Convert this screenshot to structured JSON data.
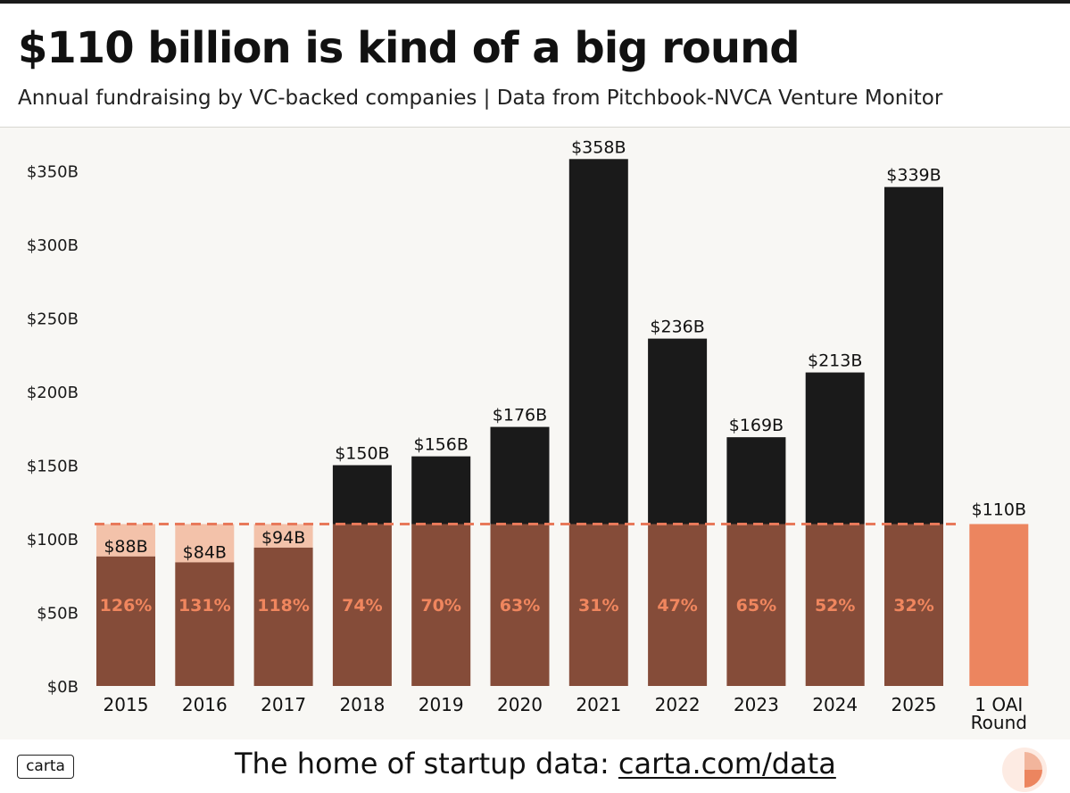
{
  "header": {
    "title": "$110 billion is kind of a big round",
    "subtitle": "Annual fundraising by VC-backed companies | Data from Pitchbook-NVCA Venture Monitor"
  },
  "colors": {
    "total_bar": "#1a1a1a",
    "portion_bar": "#854c39",
    "shortfall_fill": "#f3c2aa",
    "oai_bar": "#ec855f",
    "percent_text": "#f0865e",
    "reference_line": "#e8795a"
  },
  "chart_data": {
    "type": "bar",
    "title": "$110 billion is kind of a big round",
    "subtitle": "Annual fundraising by VC-backed companies | Data from Pitchbook-NVCA Venture Monitor",
    "xlabel": "",
    "ylabel": "",
    "ylim": [
      0,
      370
    ],
    "yticks": [
      0,
      50,
      100,
      150,
      200,
      250,
      300,
      350
    ],
    "ytick_labels": [
      "$0B",
      "$50B",
      "$100B",
      "$150B",
      "$200B",
      "$250B",
      "$300B",
      "$350B"
    ],
    "categories": [
      "2015",
      "2016",
      "2017",
      "2018",
      "2019",
      "2020",
      "2021",
      "2022",
      "2023",
      "2024",
      "2025"
    ],
    "values": [
      88,
      84,
      94,
      150,
      156,
      176,
      358,
      236,
      169,
      213,
      339
    ],
    "value_labels": [
      "$88B",
      "$84B",
      "$94B",
      "$150B",
      "$156B",
      "$176B",
      "$358B",
      "$236B",
      "$169B",
      "$213B",
      "$339B"
    ],
    "oai_share_labels": [
      "126%",
      "131%",
      "118%",
      "74%",
      "70%",
      "63%",
      "31%",
      "47%",
      "65%",
      "52%",
      "32%"
    ],
    "reference_value": 110,
    "comparison_bar": {
      "category_lines": [
        "1 OAI",
        "Round"
      ],
      "value": 110,
      "value_label": "$110B"
    },
    "grid": false,
    "legend": "none"
  },
  "footer": {
    "logo_text": "carta",
    "tagline_prefix": "The home of startup data: ",
    "tagline_link": "carta.com/data"
  }
}
